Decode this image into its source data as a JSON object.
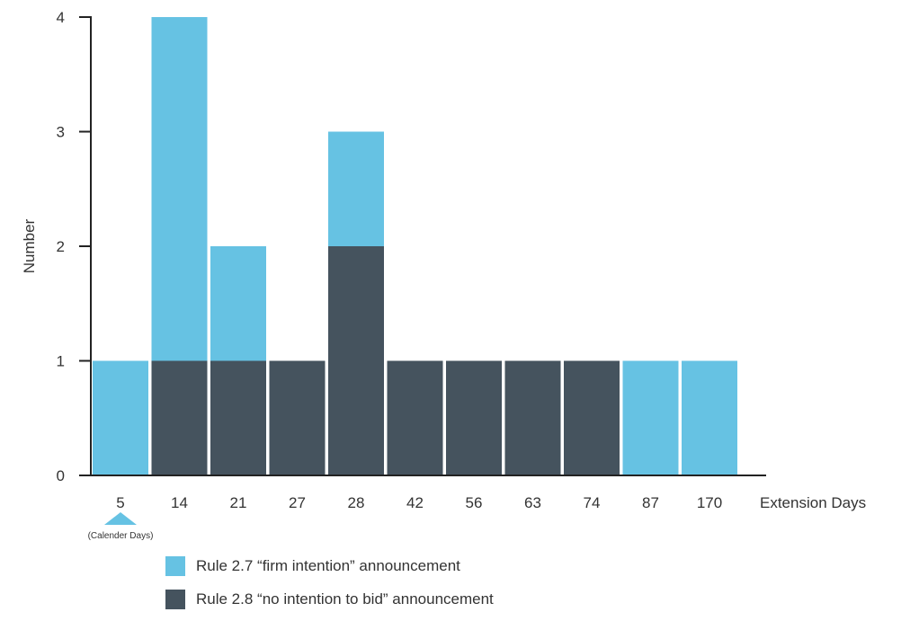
{
  "chart_data": {
    "type": "bar",
    "stacked": true,
    "categories": [
      "5",
      "14",
      "21",
      "27",
      "28",
      "42",
      "56",
      "63",
      "74",
      "87",
      "170"
    ],
    "series": [
      {
        "name": "Rule 2.8 “no intention to bid” announcement",
        "color": "#45535e",
        "values": [
          0,
          1,
          1,
          1,
          2,
          1,
          1,
          1,
          1,
          0,
          0
        ]
      },
      {
        "name": "Rule 2.7 “firm intention” announcement",
        "color": "#66c2e3",
        "values": [
          1,
          3,
          1,
          0,
          1,
          0,
          0,
          0,
          0,
          1,
          1
        ]
      }
    ],
    "xlabel": "Extension Days",
    "ylabel": "Number",
    "ylim": [
      0,
      4
    ],
    "yticks": [
      0,
      1,
      2,
      3,
      4
    ],
    "annotation": "(Calender Days)",
    "legend_position": "bottom"
  }
}
